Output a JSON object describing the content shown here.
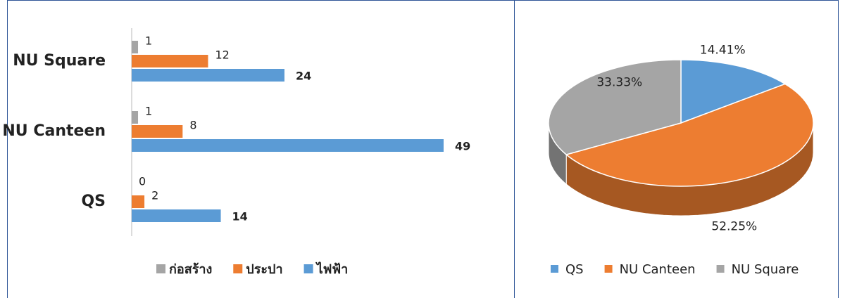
{
  "chart_data": [
    {
      "type": "bar",
      "orientation": "horizontal",
      "categories": [
        "NU Square",
        "NU Canteen",
        "QS"
      ],
      "series": [
        {
          "name": "ก่อสร้าง",
          "color": "#a5a5a5",
          "values": [
            1,
            1,
            0
          ]
        },
        {
          "name": "ประปา",
          "color": "#ed7d31",
          "values": [
            12,
            8,
            2
          ]
        },
        {
          "name": "ไฟฟ้า",
          "color": "#5b9bd5",
          "values": [
            24,
            49,
            14
          ]
        }
      ],
      "xlim": [
        0,
        50
      ],
      "legend": "bottom"
    },
    {
      "type": "pie",
      "style": "3d",
      "categories": [
        "QS",
        "NU Canteen",
        "NU Square"
      ],
      "values": [
        14.41,
        52.25,
        33.33
      ],
      "value_labels": [
        "14.41%",
        "52.25%",
        "33.33%"
      ],
      "colors": [
        "#5b9bd5",
        "#ed7d31",
        "#a5a5a5"
      ],
      "legend": "bottom"
    }
  ]
}
